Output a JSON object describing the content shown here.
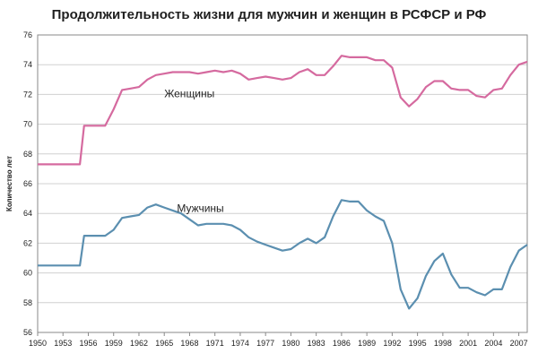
{
  "chart_data": {
    "type": "line",
    "title": "Продолжительность жизни для мужчин и женщин в РСФСР и РФ",
    "xlabel": "",
    "ylabel": "Количество лет",
    "xlim": [
      1950,
      2008
    ],
    "ylim": [
      56,
      76
    ],
    "yticks": [
      56,
      58,
      60,
      62,
      64,
      66,
      68,
      70,
      72,
      74,
      76
    ],
    "xticks": [
      1950,
      1953,
      1956,
      1959,
      1962,
      1965,
      1968,
      1971,
      1974,
      1977,
      1980,
      1983,
      1986,
      1989,
      1992,
      1995,
      1998,
      2001,
      2004,
      2007
    ],
    "grid": true,
    "series": [
      {
        "name": "Женщины",
        "color": "#d56a9f",
        "x": [
          1950,
          1955,
          1955.5,
          1958,
          1959,
          1960,
          1961,
          1962,
          1963,
          1964,
          1965,
          1966,
          1967,
          1968,
          1969,
          1970,
          1971,
          1972,
          1973,
          1974,
          1975,
          1976,
          1977,
          1978,
          1979,
          1980,
          1981,
          1982,
          1983,
          1984,
          1985,
          1986,
          1987,
          1988,
          1989,
          1990,
          1991,
          1992,
          1993,
          1994,
          1995,
          1996,
          1997,
          1998,
          1999,
          2000,
          2001,
          2002,
          2003,
          2004,
          2005,
          2006,
          2007,
          2008
        ],
        "values": [
          67.3,
          67.3,
          69.9,
          69.9,
          71.0,
          72.3,
          72.4,
          72.5,
          73.0,
          73.3,
          73.4,
          73.5,
          73.5,
          73.5,
          73.4,
          73.5,
          73.6,
          73.5,
          73.6,
          73.4,
          73.0,
          73.1,
          73.2,
          73.1,
          73.0,
          73.1,
          73.5,
          73.7,
          73.3,
          73.3,
          73.9,
          74.6,
          74.5,
          74.5,
          74.5,
          74.3,
          74.3,
          73.8,
          71.8,
          71.2,
          71.7,
          72.5,
          72.9,
          72.9,
          72.4,
          72.3,
          72.3,
          71.9,
          71.8,
          72.3,
          72.4,
          73.3,
          74.0,
          74.2
        ]
      },
      {
        "name": "Мужчины",
        "color": "#5b8fb0",
        "x": [
          1950,
          1955,
          1955.5,
          1958,
          1959,
          1960,
          1961,
          1962,
          1963,
          1964,
          1965,
          1966,
          1967,
          1968,
          1969,
          1970,
          1971,
          1972,
          1973,
          1974,
          1975,
          1976,
          1977,
          1978,
          1979,
          1980,
          1981,
          1982,
          1983,
          1984,
          1985,
          1986,
          1987,
          1988,
          1989,
          1990,
          1991,
          1992,
          1993,
          1994,
          1995,
          1996,
          1997,
          1998,
          1999,
          2000,
          2001,
          2002,
          2003,
          2004,
          2005,
          2006,
          2007,
          2008
        ],
        "values": [
          60.5,
          60.5,
          62.5,
          62.5,
          62.9,
          63.7,
          63.8,
          63.9,
          64.4,
          64.6,
          64.4,
          64.2,
          64.0,
          63.6,
          63.2,
          63.3,
          63.3,
          63.3,
          63.2,
          62.9,
          62.4,
          62.1,
          61.9,
          61.7,
          61.5,
          61.6,
          62.0,
          62.3,
          62.0,
          62.4,
          63.8,
          64.9,
          64.8,
          64.8,
          64.2,
          63.8,
          63.5,
          62.0,
          58.9,
          57.6,
          58.3,
          59.8,
          60.8,
          61.3,
          59.9,
          59.0,
          59.0,
          58.7,
          58.5,
          58.9,
          58.9,
          60.4,
          61.5,
          61.9
        ]
      }
    ]
  }
}
